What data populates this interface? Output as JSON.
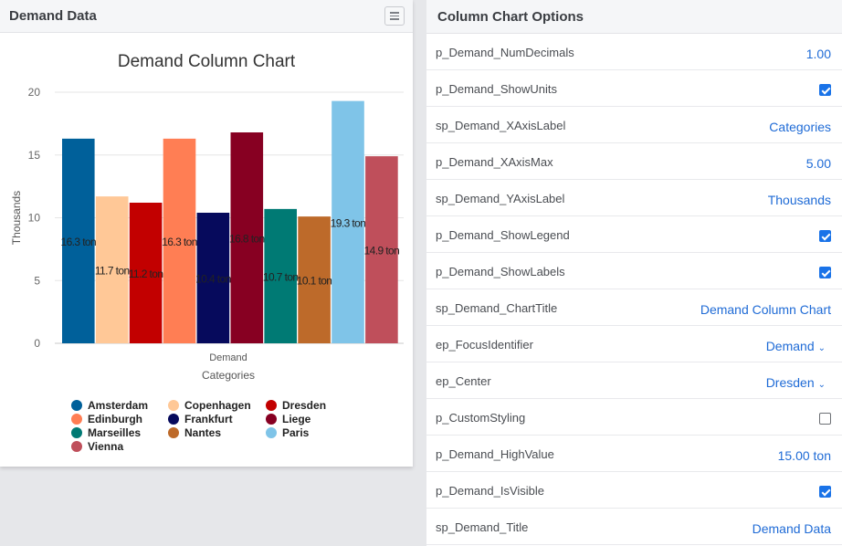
{
  "left_panel": {
    "title": "Demand Data"
  },
  "chart_data": {
    "type": "bar",
    "title": "Demand Column Chart",
    "xlabel": "Categories",
    "ylabel": "Thousands",
    "categories": [
      "Demand"
    ],
    "ylim": [
      0,
      20
    ],
    "yticks": [
      0,
      5,
      10,
      15,
      20
    ],
    "unit": "ton",
    "legend_position": "bottom",
    "grid": true,
    "series": [
      {
        "name": "Amsterdam",
        "values": [
          16.3
        ],
        "label": "16.3 ton",
        "color": "#00609a"
      },
      {
        "name": "Copenhagen",
        "values": [
          11.7
        ],
        "label": "11.7 ton",
        "color": "#ffc897"
      },
      {
        "name": "Dresden",
        "values": [
          11.2
        ],
        "label": "11.2 ton",
        "color": "#c20000"
      },
      {
        "name": "Edinburgh",
        "values": [
          16.3
        ],
        "label": "16.3 ton",
        "color": "#ff7e54"
      },
      {
        "name": "Frankfurt",
        "values": [
          10.4
        ],
        "label": "10.4 ton",
        "color": "#060a5c"
      },
      {
        "name": "Liege",
        "values": [
          16.8
        ],
        "label": "16.8 ton",
        "color": "#870022"
      },
      {
        "name": "Marseilles",
        "values": [
          10.7
        ],
        "label": "10.7 ton",
        "color": "#007a74"
      },
      {
        "name": "Nantes",
        "values": [
          10.1
        ],
        "label": "10.1 ton",
        "color": "#bd6a2a"
      },
      {
        "name": "Paris",
        "values": [
          19.3
        ],
        "label": "19.3 ton",
        "color": "#7fc4e8"
      },
      {
        "name": "Vienna",
        "values": [
          14.9
        ],
        "label": "14.9 ton",
        "color": "#bf4f5b"
      }
    ]
  },
  "right_panel": {
    "title": "Column Chart Options",
    "rows": [
      {
        "label": "p_Demand_NumDecimals",
        "kind": "text",
        "value": "1.00"
      },
      {
        "label": "p_Demand_ShowUnits",
        "kind": "checkbox",
        "checked": true
      },
      {
        "label": "sp_Demand_XAxisLabel",
        "kind": "text",
        "value": "Categories"
      },
      {
        "label": "p_Demand_XAxisMax",
        "kind": "text",
        "value": "5.00"
      },
      {
        "label": "sp_Demand_YAxisLabel",
        "kind": "text",
        "value": "Thousands"
      },
      {
        "label": "p_Demand_ShowLegend",
        "kind": "checkbox",
        "checked": true
      },
      {
        "label": "p_Demand_ShowLabels",
        "kind": "checkbox",
        "checked": true
      },
      {
        "label": "sp_Demand_ChartTitle",
        "kind": "text",
        "value": "Demand Column Chart"
      },
      {
        "label": "ep_FocusIdentifier",
        "kind": "select",
        "value": "Demand"
      },
      {
        "label": "ep_Center",
        "kind": "select",
        "value": "Dresden"
      },
      {
        "label": "p_CustomStyling",
        "kind": "checkbox",
        "checked": false
      },
      {
        "label": "p_Demand_HighValue",
        "kind": "text",
        "value": "15.00 ton"
      },
      {
        "label": "p_Demand_IsVisible",
        "kind": "checkbox",
        "checked": true
      },
      {
        "label": "sp_Demand_Title",
        "kind": "text",
        "value": "Demand Data"
      }
    ]
  },
  "icons": {
    "menu": "hamburger-icon",
    "select_caret": "chevron-down-icon",
    "legend_marker": "circle-icon"
  }
}
